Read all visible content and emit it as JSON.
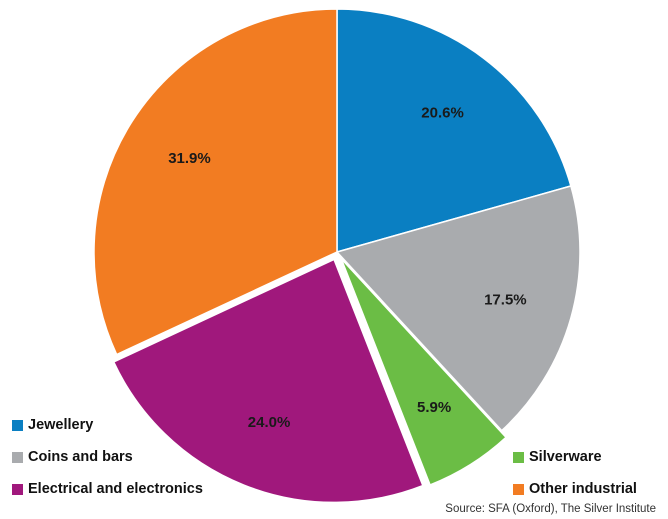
{
  "chart_data": {
    "type": "pie",
    "slices": [
      {
        "name": "Jewellery",
        "value": 20.6,
        "label": "20.6%",
        "color": "#0a7fc2",
        "exploded": false
      },
      {
        "name": "Coins and bars",
        "value": 17.5,
        "label": "17.5%",
        "color": "#a9abae",
        "exploded": false
      },
      {
        "name": "Silverware",
        "value": 5.9,
        "label": "5.9%",
        "color": "#6bbd45",
        "exploded": true
      },
      {
        "name": "Electrical and electronics",
        "value": 24.0,
        "label": "24.0%",
        "color": "#a0187c",
        "exploded": true
      },
      {
        "name": "Other industrial",
        "value": 31.9,
        "label": "31.9%",
        "color": "#f27c22",
        "exploded": false
      }
    ],
    "legend_left": [
      {
        "name": "Jewellery",
        "color": "#0a7fc2"
      },
      {
        "name": "Coins and bars",
        "color": "#a9abae"
      },
      {
        "name": "Electrical and electronics",
        "color": "#a0187c"
      }
    ],
    "legend_right": [
      {
        "name": "Silverware",
        "color": "#6bbd45"
      },
      {
        "name": "Other industrial",
        "color": "#f27c22"
      }
    ],
    "start_angle": "12 o'clock",
    "direction": "clockwise"
  },
  "source": "Source: SFA (Oxford), The Silver Institute"
}
